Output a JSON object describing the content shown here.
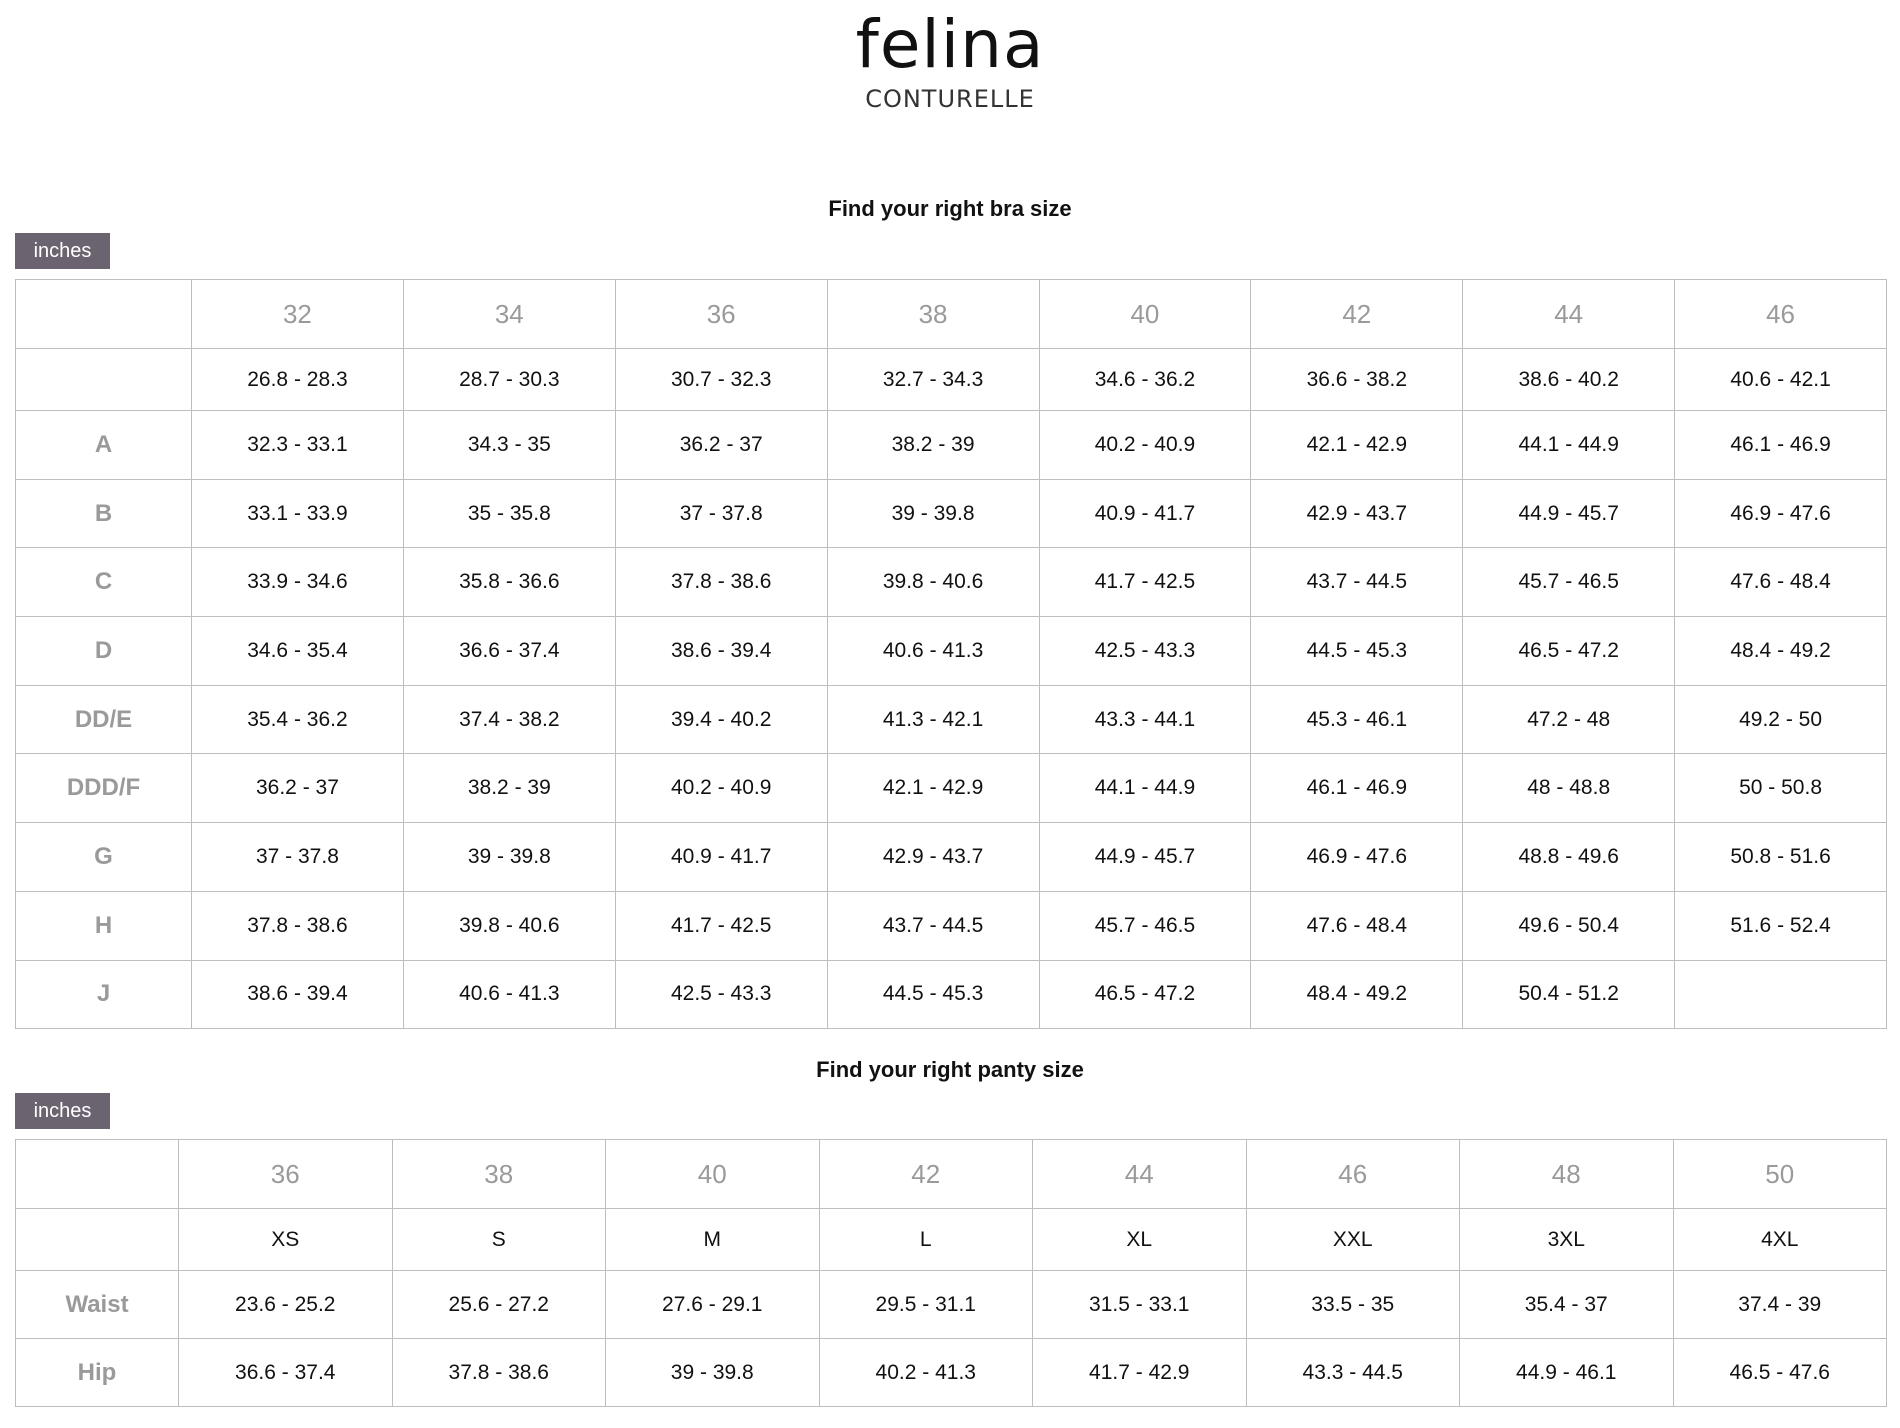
{
  "logo": {
    "brand": "felina",
    "sub": "CONTURELLE"
  },
  "bra": {
    "title": "Find your right bra size",
    "unit": "inches",
    "sizes": [
      "32",
      "34",
      "36",
      "38",
      "40",
      "42",
      "44",
      "46"
    ],
    "underbust": [
      "26.8 - 28.3",
      "28.7 - 30.3",
      "30.7 - 32.3",
      "32.7 - 34.3",
      "34.6 - 36.2",
      "36.6 - 38.2",
      "38.6 - 40.2",
      "40.6 - 42.1"
    ],
    "rows": [
      {
        "cup": "A",
        "values": [
          "32.3 - 33.1",
          "34.3 - 35",
          "36.2 - 37",
          "38.2 - 39",
          "40.2 - 40.9",
          "42.1 - 42.9",
          "44.1 - 44.9",
          "46.1 - 46.9"
        ]
      },
      {
        "cup": "B",
        "values": [
          "33.1 - 33.9",
          "35 - 35.8",
          "37 - 37.8",
          "39 - 39.8",
          "40.9 - 41.7",
          "42.9 - 43.7",
          "44.9 - 45.7",
          "46.9 - 47.6"
        ]
      },
      {
        "cup": "C",
        "values": [
          "33.9 - 34.6",
          "35.8 - 36.6",
          "37.8 - 38.6",
          "39.8 - 40.6",
          "41.7 - 42.5",
          "43.7 - 44.5",
          "45.7 - 46.5",
          "47.6 - 48.4"
        ]
      },
      {
        "cup": "D",
        "values": [
          "34.6 - 35.4",
          "36.6 - 37.4",
          "38.6 - 39.4",
          "40.6 - 41.3",
          "42.5 - 43.3",
          "44.5 - 45.3",
          "46.5 - 47.2",
          "48.4 - 49.2"
        ]
      },
      {
        "cup": "DD/E",
        "values": [
          "35.4 - 36.2",
          "37.4 - 38.2",
          "39.4 - 40.2",
          "41.3 - 42.1",
          "43.3 - 44.1",
          "45.3 - 46.1",
          "47.2 - 48",
          "49.2 - 50"
        ]
      },
      {
        "cup": "DDD/F",
        "values": [
          "36.2 - 37",
          "38.2 - 39",
          "40.2 - 40.9",
          "42.1 - 42.9",
          "44.1 - 44.9",
          "46.1 - 46.9",
          "48 - 48.8",
          "50 - 50.8"
        ]
      },
      {
        "cup": "G",
        "values": [
          "37 - 37.8",
          "39 - 39.8",
          "40.9 - 41.7",
          "42.9 - 43.7",
          "44.9 - 45.7",
          "46.9 - 47.6",
          "48.8 - 49.6",
          "50.8 - 51.6"
        ]
      },
      {
        "cup": "H",
        "values": [
          "37.8 - 38.6",
          "39.8 - 40.6",
          "41.7 - 42.5",
          "43.7 - 44.5",
          "45.7 - 46.5",
          "47.6 - 48.4",
          "49.6 - 50.4",
          "51.6 - 52.4"
        ]
      },
      {
        "cup": "J",
        "values": [
          "38.6 - 39.4",
          "40.6 - 41.3",
          "42.5 - 43.3",
          "44.5 - 45.3",
          "46.5 - 47.2",
          "48.4 - 49.2",
          "50.4 - 51.2",
          ""
        ]
      }
    ]
  },
  "panty": {
    "title": "Find your right panty size",
    "unit": "inches",
    "sizes": [
      "36",
      "38",
      "40",
      "42",
      "44",
      "46",
      "48",
      "50"
    ],
    "letters": [
      "XS",
      "S",
      "M",
      "L",
      "XL",
      "XXL",
      "3XL",
      "4XL"
    ],
    "rows": [
      {
        "label": "Waist",
        "values": [
          "23.6 - 25.2",
          "25.6 - 27.2",
          "27.6 - 29.1",
          "29.5 - 31.1",
          "31.5 - 33.1",
          "33.5 - 35",
          "35.4 - 37",
          "37.4 - 39"
        ]
      },
      {
        "label": "Hip",
        "values": [
          "36.6 - 37.4",
          "37.8 - 38.6",
          "39 - 39.8",
          "40.2 - 41.3",
          "41.7 - 42.9",
          "43.3 - 44.5",
          "44.9 - 46.1",
          "46.5 - 47.6"
        ]
      }
    ]
  },
  "colors": {
    "badge": "#6b6470",
    "header_text": "#9a9a9a",
    "border": "#bdbdbd"
  }
}
